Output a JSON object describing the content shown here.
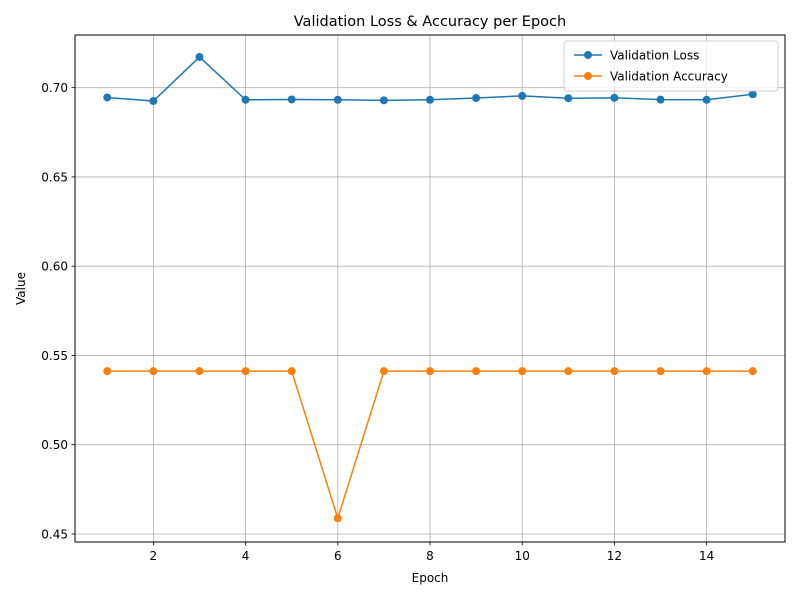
{
  "chart_data": {
    "type": "line",
    "title": "Validation Loss & Accuracy per Epoch",
    "xlabel": "Epoch",
    "ylabel": "Value",
    "xlim": [
      0.3,
      15.7
    ],
    "ylim": [
      0.4455,
      0.7295
    ],
    "xticks": [
      2,
      4,
      6,
      8,
      10,
      12,
      14
    ],
    "yticks": [
      0.45,
      0.5,
      0.55,
      0.6,
      0.65,
      0.7
    ],
    "ytick_labels": [
      "0.45",
      "0.50",
      "0.55",
      "0.60",
      "0.65",
      "0.70"
    ],
    "grid": true,
    "legend_position": "top-right",
    "x": [
      1,
      2,
      3,
      4,
      5,
      6,
      7,
      8,
      9,
      10,
      11,
      12,
      13,
      14,
      15
    ],
    "series": [
      {
        "name": "Validation Loss",
        "color": "#1f77b4",
        "values": [
          0.6945,
          0.6925,
          0.7172,
          0.6932,
          0.6934,
          0.6932,
          0.6929,
          0.6932,
          0.6942,
          0.6954,
          0.6941,
          0.6943,
          0.6933,
          0.6932,
          0.6963
        ]
      },
      {
        "name": "Validation Accuracy",
        "color": "#ff7f0e",
        "values": [
          0.5412,
          0.5412,
          0.5412,
          0.5412,
          0.5412,
          0.4588,
          0.5412,
          0.5412,
          0.5412,
          0.5412,
          0.5412,
          0.5412,
          0.5412,
          0.5412,
          0.5412
        ]
      }
    ]
  }
}
